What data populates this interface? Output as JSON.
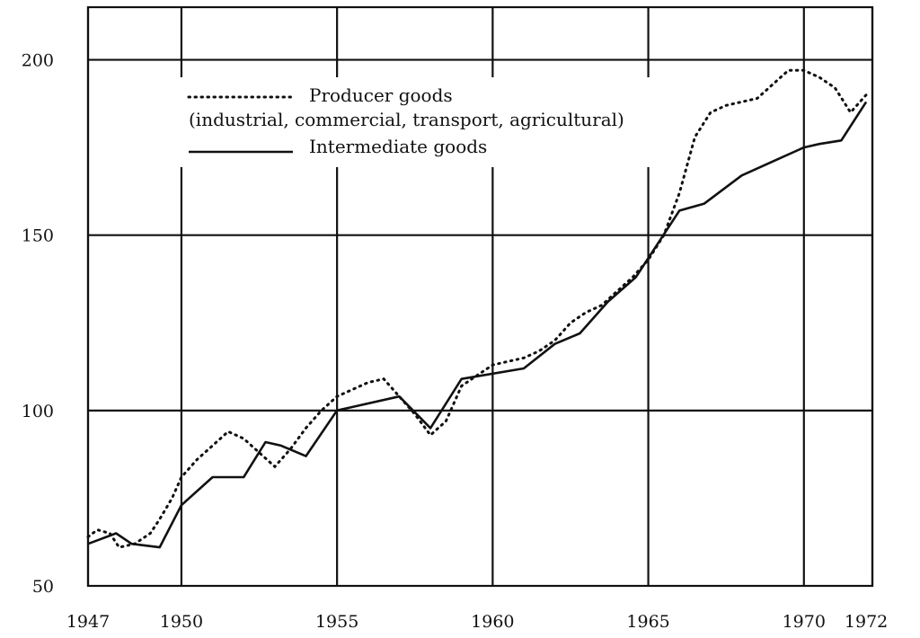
{
  "chart_data": {
    "type": "line",
    "title": "",
    "xlabel": "",
    "ylabel": "",
    "xlim": [
      1947,
      1972.2
    ],
    "ylim": [
      50,
      215
    ],
    "x_ticks": [
      1947,
      1950,
      1955,
      1960,
      1965,
      1970,
      1972
    ],
    "x_tick_labels": [
      "1947",
      "1950",
      "1955",
      "1960",
      "1965",
      "1970",
      "1972"
    ],
    "y_ticks": [
      50,
      100,
      150,
      200
    ],
    "y_tick_labels": [
      "50",
      "100",
      "150",
      "200"
    ],
    "grid_x": [
      1947,
      1950,
      1955,
      1960,
      1965,
      1970,
      1972.2
    ],
    "grid_y": [
      100,
      150,
      200
    ],
    "grid": true,
    "legend_position": "top-left",
    "legend": {
      "producer_line1": "Producer goods",
      "producer_line2": "(industrial, commercial, transport, agricultural)",
      "intermediate": "Intermediate goods"
    },
    "series": [
      {
        "name": "Producer goods (industrial, commercial, transport, agricultural)",
        "style": "dotted",
        "x": [
          1947,
          1947.3,
          1947.7,
          1948,
          1948.5,
          1949,
          1949.3,
          1949.7,
          1950,
          1950.5,
          1951,
          1951.5,
          1952,
          1952.5,
          1953,
          1953.5,
          1954,
          1954.5,
          1955,
          1955.5,
          1956,
          1956.5,
          1957,
          1957.5,
          1958,
          1958.5,
          1959,
          1959.5,
          1960,
          1960.5,
          1961,
          1961.5,
          1962,
          1962.5,
          1963,
          1963.5,
          1964,
          1964.5,
          1965,
          1965.5,
          1966,
          1966.5,
          1967,
          1967.5,
          1968,
          1968.5,
          1969,
          1969.5,
          1970,
          1970.5,
          1971,
          1971.5,
          1972
        ],
        "y": [
          64,
          66,
          65,
          61,
          62,
          65,
          69,
          75,
          81,
          86,
          90,
          94,
          92,
          88,
          84,
          89,
          95,
          100,
          104,
          106,
          108,
          109,
          104,
          99,
          93,
          97,
          107,
          110,
          113,
          114,
          115,
          117,
          120,
          125,
          128,
          130,
          134,
          138,
          143,
          150,
          162,
          178,
          185,
          187,
          188,
          189,
          193,
          197,
          197,
          195,
          192,
          185,
          190
        ]
      },
      {
        "name": "Intermediate goods",
        "style": "solid",
        "x": [
          1947,
          1947.3,
          1947.9,
          1948.4,
          1949.3,
          1950,
          1951,
          1951.5,
          1952,
          1952.7,
          1953.2,
          1954,
          1955,
          1957,
          1958,
          1959,
          1961,
          1962,
          1962.8,
          1963.7,
          1964.6,
          1966,
          1966.8,
          1968,
          1969,
          1970,
          1970.5,
          1971.2,
          1972
        ],
        "y": [
          62,
          63,
          65,
          62,
          61,
          73,
          81,
          81,
          81,
          91,
          90,
          87,
          100,
          104,
          95,
          109,
          112,
          119,
          122,
          131,
          138,
          157,
          159,
          167,
          171,
          175,
          176,
          177,
          188
        ]
      }
    ]
  }
}
